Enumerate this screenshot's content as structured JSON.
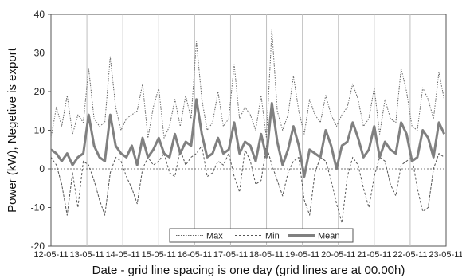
{
  "chart_data": {
    "type": "line",
    "title": "",
    "xlabel": "Date - grid line spacing is one day  (grid lines are at 00.00h)",
    "ylabel": "Power (kW), Negetive is export",
    "ylim": [
      -20,
      40
    ],
    "yticks": [
      -20,
      -10,
      0,
      10,
      20,
      30,
      40
    ],
    "x_tick_labels": [
      "12-05-11",
      "13-05-11",
      "14-05-11",
      "15-05-11",
      "16-05-11",
      "17-05-11",
      "18-05-11",
      "19-05-11",
      "20-05-11",
      "21-05-11",
      "22-05-11",
      "23-05-11"
    ],
    "xlim": [
      0,
      11
    ],
    "grid": "vertical lines at each day",
    "legend_position": "bottom-center",
    "zero_line": "dotted",
    "series": [
      {
        "name": "Max",
        "style": "dotted",
        "x": [
          0,
          0.15,
          0.3,
          0.45,
          0.6,
          0.75,
          0.9,
          1.05,
          1.2,
          1.35,
          1.5,
          1.65,
          1.8,
          1.95,
          2.1,
          2.25,
          2.4,
          2.55,
          2.7,
          2.85,
          3.0,
          3.15,
          3.3,
          3.45,
          3.6,
          3.75,
          3.9,
          4.05,
          4.2,
          4.35,
          4.5,
          4.65,
          4.8,
          4.95,
          5.1,
          5.25,
          5.4,
          5.55,
          5.7,
          5.85,
          6.0,
          6.15,
          6.3,
          6.45,
          6.6,
          6.75,
          6.9,
          7.05,
          7.2,
          7.35,
          7.5,
          7.65,
          7.8,
          7.95,
          8.1,
          8.25,
          8.4,
          8.55,
          8.7,
          8.85,
          9.0,
          9.15,
          9.3,
          9.45,
          9.6,
          9.75,
          9.9,
          10.05,
          10.2,
          10.35,
          10.5,
          10.65,
          10.8,
          10.95
        ],
        "values": [
          8,
          16,
          11,
          19,
          9,
          14,
          12,
          26,
          13,
          11,
          12,
          29,
          16,
          10,
          13,
          14,
          15,
          22,
          8,
          16,
          21,
          8,
          11,
          18,
          11,
          19,
          13,
          33,
          18,
          10,
          12,
          20,
          11,
          13,
          27,
          13,
          16,
          14,
          10,
          19,
          8,
          36,
          15,
          10,
          14,
          24,
          15,
          9,
          18,
          14,
          12,
          19,
          14,
          11,
          14,
          16,
          22,
          18,
          11,
          13,
          21,
          9,
          18,
          13,
          12,
          26,
          20,
          11,
          10,
          21,
          18,
          13,
          25,
          18
        ]
      },
      {
        "name": "Min",
        "style": "dashed",
        "x": [
          0,
          0.15,
          0.3,
          0.45,
          0.6,
          0.75,
          0.9,
          1.05,
          1.2,
          1.35,
          1.5,
          1.65,
          1.8,
          1.95,
          2.1,
          2.25,
          2.4,
          2.55,
          2.7,
          2.85,
          3.0,
          3.15,
          3.3,
          3.45,
          3.6,
          3.75,
          3.9,
          4.05,
          4.2,
          4.35,
          4.5,
          4.65,
          4.8,
          4.95,
          5.1,
          5.25,
          5.4,
          5.55,
          5.7,
          5.85,
          6.0,
          6.15,
          6.3,
          6.45,
          6.6,
          6.75,
          6.9,
          7.05,
          7.2,
          7.35,
          7.5,
          7.65,
          7.8,
          7.95,
          8.1,
          8.25,
          8.4,
          8.55,
          8.7,
          8.85,
          9.0,
          9.15,
          9.3,
          9.45,
          9.6,
          9.75,
          9.9,
          10.05,
          10.2,
          10.35,
          10.5,
          10.65,
          10.8,
          10.95
        ],
        "values": [
          3,
          1,
          -4,
          -12,
          -1,
          -10,
          2,
          1,
          -3,
          -8,
          -12,
          -1,
          3,
          2,
          -2,
          -5,
          -9,
          0,
          3,
          1,
          2,
          4,
          -1,
          -2,
          5,
          1,
          3,
          4,
          6,
          -2,
          -1,
          2,
          1,
          4,
          -2,
          -6,
          5,
          2,
          -4,
          -3,
          6,
          1,
          -3,
          -7,
          -1,
          2,
          3,
          -8,
          -12,
          -1,
          3,
          2,
          -3,
          -9,
          -14,
          -2,
          3,
          1,
          -5,
          -10,
          -2,
          3,
          2,
          -4,
          -7,
          1,
          2,
          3,
          -5,
          -11,
          -10,
          0,
          4,
          3
        ]
      },
      {
        "name": "Mean",
        "style": "solid",
        "x": [
          0,
          0.15,
          0.3,
          0.45,
          0.6,
          0.75,
          0.9,
          1.05,
          1.2,
          1.35,
          1.5,
          1.65,
          1.8,
          1.95,
          2.1,
          2.25,
          2.4,
          2.55,
          2.7,
          2.85,
          3.0,
          3.15,
          3.3,
          3.45,
          3.6,
          3.75,
          3.9,
          4.05,
          4.2,
          4.35,
          4.5,
          4.65,
          4.8,
          4.95,
          5.1,
          5.25,
          5.4,
          5.55,
          5.7,
          5.85,
          6.0,
          6.15,
          6.3,
          6.45,
          6.6,
          6.75,
          6.9,
          7.05,
          7.2,
          7.35,
          7.5,
          7.65,
          7.8,
          7.95,
          8.1,
          8.25,
          8.4,
          8.55,
          8.7,
          8.85,
          9.0,
          9.15,
          9.3,
          9.45,
          9.6,
          9.75,
          9.9,
          10.05,
          10.2,
          10.35,
          10.5,
          10.65,
          10.8,
          10.95
        ],
        "values": [
          5,
          4,
          2,
          4,
          1,
          3,
          4,
          14,
          6,
          3,
          2,
          14,
          6,
          4,
          3,
          6,
          1,
          8,
          3,
          5,
          8,
          4,
          3,
          9,
          4,
          7,
          6,
          18,
          9,
          3,
          4,
          8,
          4,
          5,
          12,
          4,
          7,
          6,
          2,
          9,
          3,
          17,
          7,
          1,
          5,
          11,
          6,
          -2,
          5,
          4,
          3,
          10,
          6,
          0,
          6,
          7,
          12,
          8,
          3,
          5,
          11,
          3,
          7,
          5,
          4,
          12,
          9,
          2,
          3,
          10,
          8,
          3,
          12,
          9
        ]
      }
    ]
  }
}
